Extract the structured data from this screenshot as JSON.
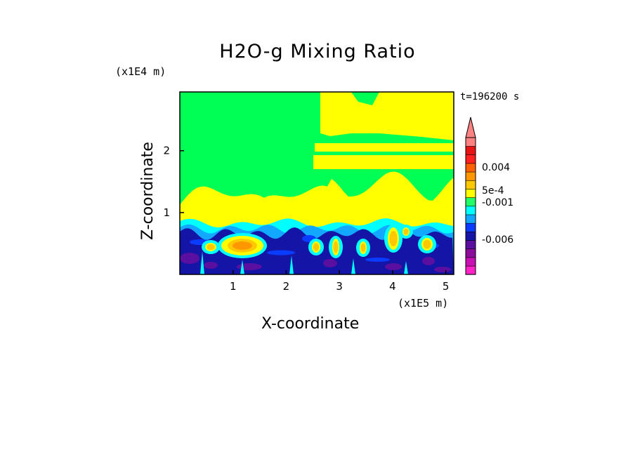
{
  "chart_data": {
    "type": "heatmap",
    "title": "H2O-g Mixing Ratio",
    "xlabel": "X-coordinate",
    "ylabel": "Z-coordinate",
    "x_unit": "(x1E5 m)",
    "y_unit": "(x1E4 m)",
    "time_label": "t=196200 s",
    "x_ticks": [
      "1",
      "2",
      "3",
      "4",
      "5"
    ],
    "y_ticks": [
      "1",
      "2"
    ],
    "xlim": [
      0,
      5.15
    ],
    "ylim": [
      0,
      2.95
    ],
    "colorbar": {
      "colors": [
        "#ff22c8",
        "#c810b4",
        "#8c0c9c",
        "#5a0fa0",
        "#1414a6",
        "#0a3cff",
        "#12a8ff",
        "#00ffff",
        "#20ff68",
        "#ffff00",
        "#ffc800",
        "#ff9800",
        "#ff6000",
        "#ff2020",
        "#e81414",
        "#ff8282"
      ],
      "labels": [
        "0.004",
        "5e-4",
        "-0.001",
        "-0.006"
      ],
      "extend": "max"
    },
    "field_colors": {
      "background": "#00ff55",
      "upper": "#ffff00",
      "band_high": "#00ffff",
      "band_mid": "#12a8ff",
      "low": "#1414a6",
      "low_alt": "#0a3cff",
      "deep": "#5a0fa0",
      "warm": "#ffc800",
      "hot": "#ff9800"
    }
  }
}
